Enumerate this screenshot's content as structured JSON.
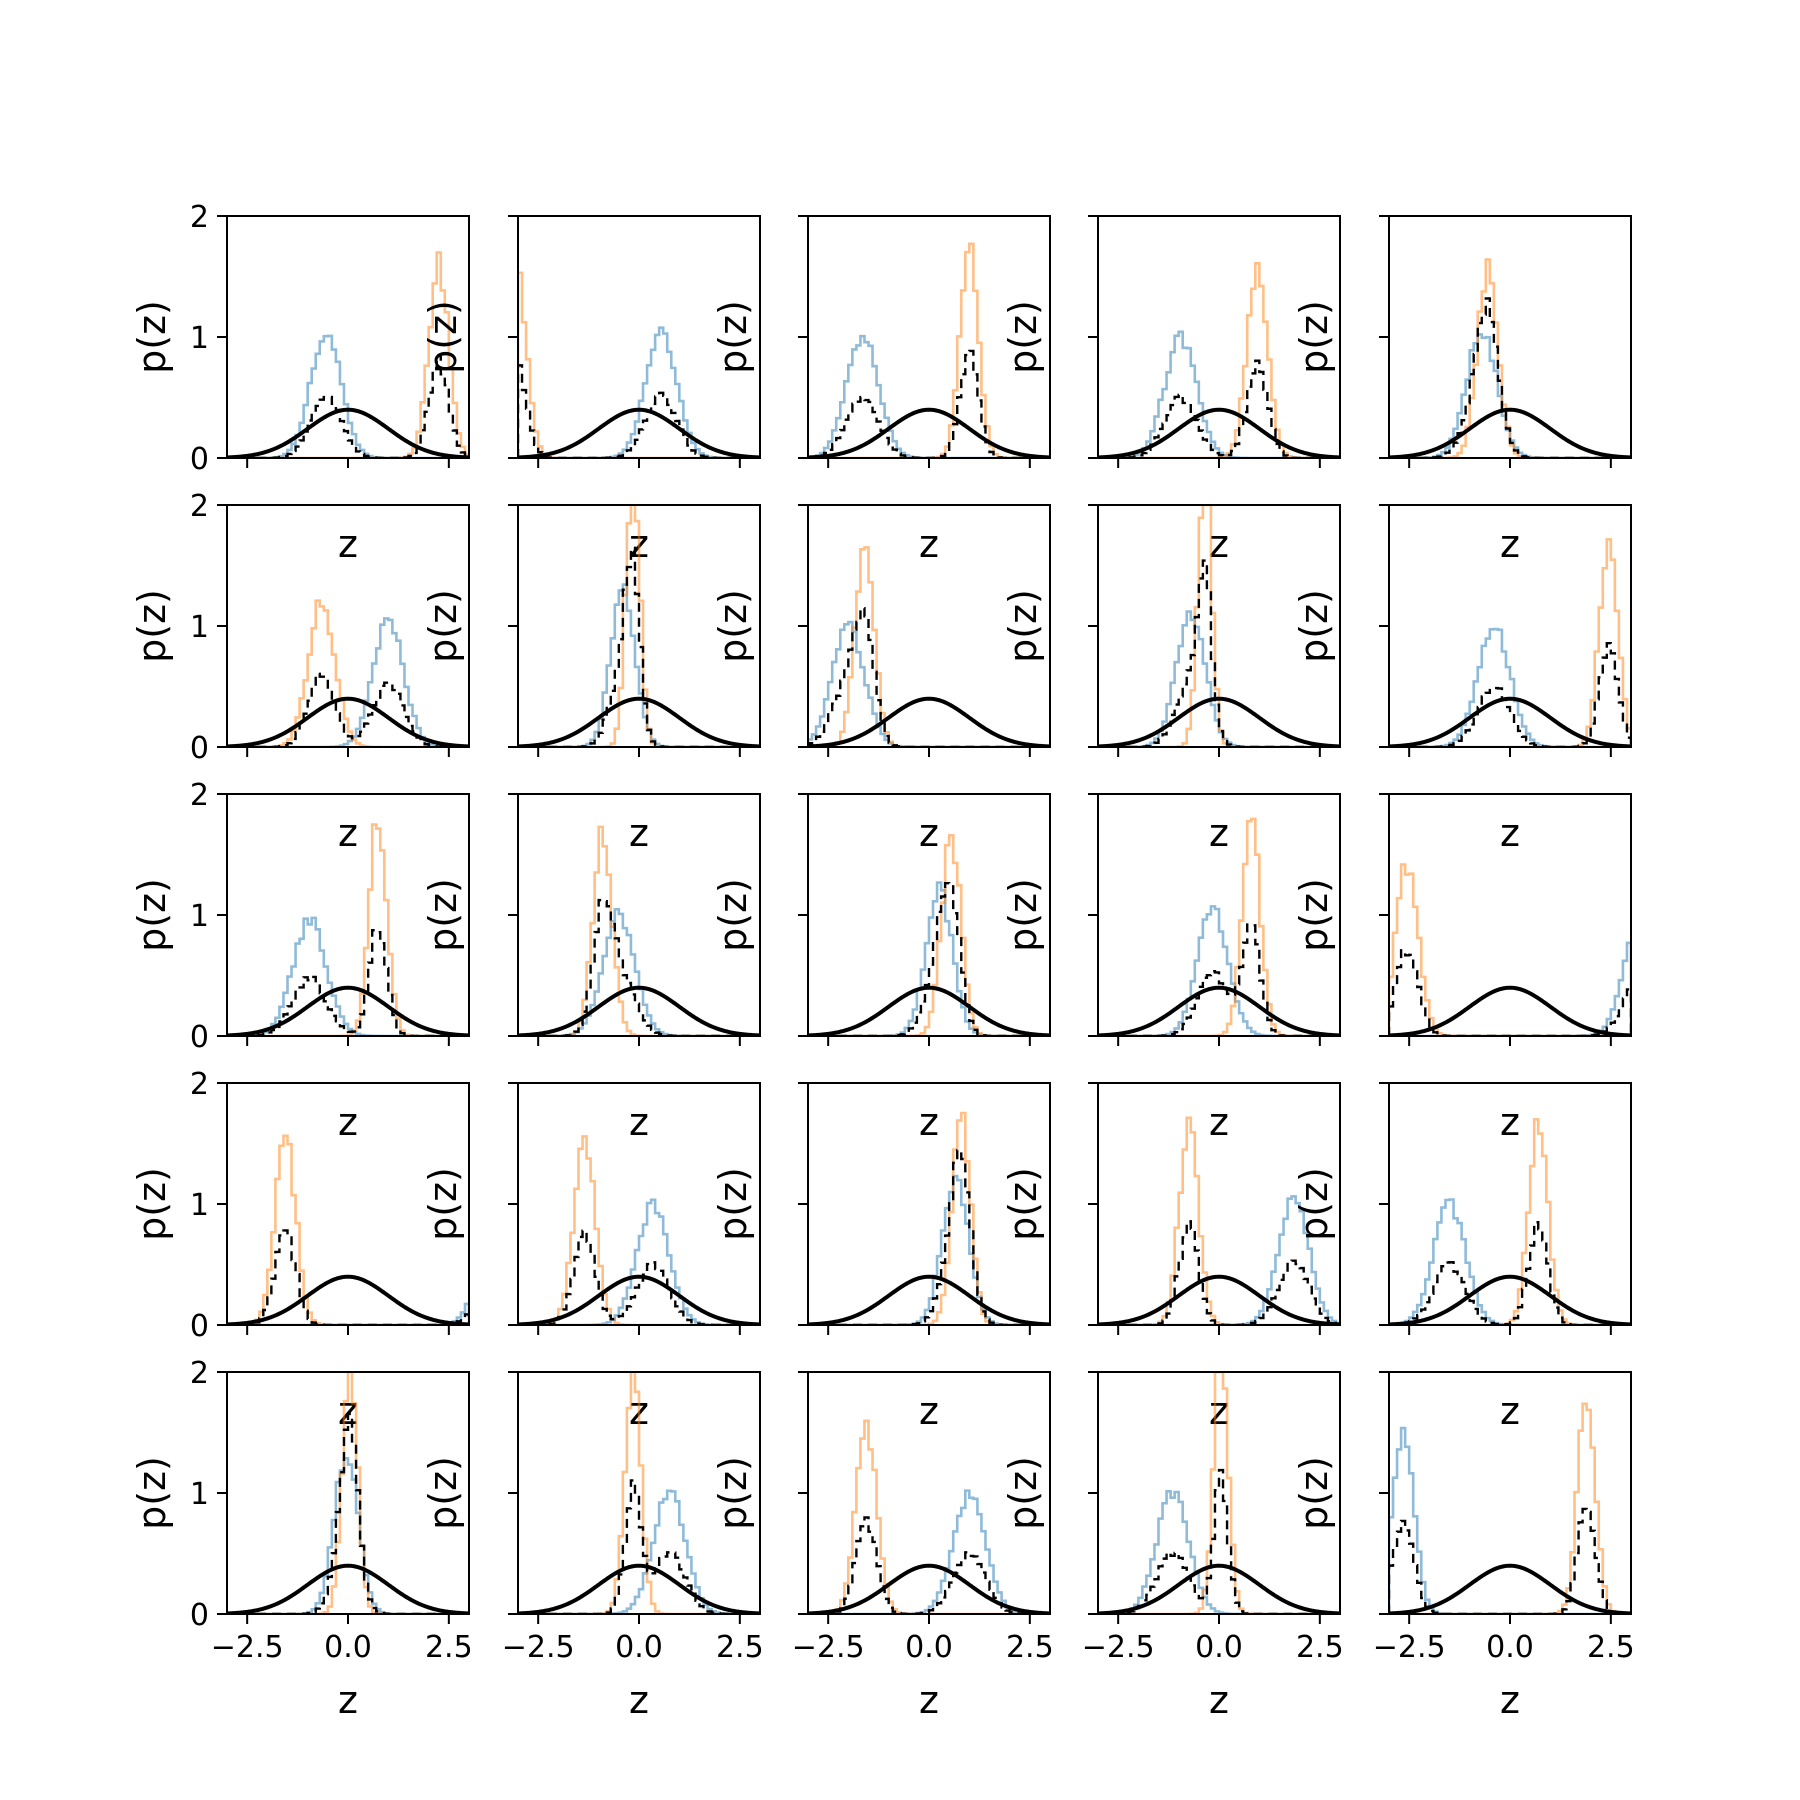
{
  "figure": {
    "rows": 5,
    "cols": 5,
    "colors": {
      "component_a": "#1f77b4",
      "component_b": "#ff7f0e",
      "mixture": "#000000",
      "prior": "#000000"
    },
    "hist_alpha": 0.5
  },
  "chart_data": {
    "type": "histogram-grid",
    "xlabel": "z",
    "ylabel": "p(z)",
    "xlim": [
      -3.0,
      3.0
    ],
    "ylim": [
      0,
      2
    ],
    "xticks": [
      -2.5,
      0.0,
      2.5
    ],
    "xtick_labels": [
      "−2.5",
      "0.0",
      "2.5"
    ],
    "yticks": [
      0,
      1,
      2
    ],
    "ytick_labels": [
      "0",
      "1",
      "2"
    ],
    "prior": {
      "name": "N(0,1)",
      "mean": 0,
      "std": 1
    },
    "panels": [
      {
        "row": 0,
        "col": 0,
        "a": {
          "mu": -0.55,
          "sd": 0.38
        },
        "b": {
          "mu": 2.25,
          "sd": 0.25
        }
      },
      {
        "row": 0,
        "col": 1,
        "a": {
          "mu": 0.55,
          "sd": 0.39
        },
        "b": {
          "mu": -3.05,
          "sd": 0.25
        }
      },
      {
        "row": 0,
        "col": 2,
        "a": {
          "mu": -1.65,
          "sd": 0.4
        },
        "b": {
          "mu": 1.0,
          "sd": 0.23
        }
      },
      {
        "row": 0,
        "col": 3,
        "a": {
          "mu": -0.95,
          "sd": 0.4
        },
        "b": {
          "mu": 0.95,
          "sd": 0.26
        }
      },
      {
        "row": 0,
        "col": 4,
        "a": {
          "mu": -0.7,
          "sd": 0.38
        },
        "b": {
          "mu": -0.55,
          "sd": 0.26
        }
      },
      {
        "row": 1,
        "col": 0,
        "a": {
          "mu": 1.0,
          "sd": 0.38
        },
        "b": {
          "mu": -0.65,
          "sd": 0.33
        }
      },
      {
        "row": 1,
        "col": 1,
        "a": {
          "mu": -0.4,
          "sd": 0.3
        },
        "b": {
          "mu": -0.15,
          "sd": 0.17
        }
      },
      {
        "row": 1,
        "col": 2,
        "a": {
          "mu": -2.0,
          "sd": 0.4
        },
        "b": {
          "mu": -1.6,
          "sd": 0.24
        }
      },
      {
        "row": 1,
        "col": 3,
        "a": {
          "mu": -0.7,
          "sd": 0.36
        },
        "b": {
          "mu": -0.35,
          "sd": 0.17
        }
      },
      {
        "row": 1,
        "col": 4,
        "a": {
          "mu": -0.4,
          "sd": 0.4
        },
        "b": {
          "mu": 2.45,
          "sd": 0.23
        }
      },
      {
        "row": 2,
        "col": 0,
        "a": {
          "mu": -0.95,
          "sd": 0.42
        },
        "b": {
          "mu": 0.75,
          "sd": 0.22
        }
      },
      {
        "row": 2,
        "col": 1,
        "a": {
          "mu": -0.5,
          "sd": 0.4
        },
        "b": {
          "mu": -0.9,
          "sd": 0.24
        }
      },
      {
        "row": 2,
        "col": 2,
        "a": {
          "mu": 0.25,
          "sd": 0.33
        },
        "b": {
          "mu": 0.55,
          "sd": 0.24
        }
      },
      {
        "row": 2,
        "col": 3,
        "a": {
          "mu": -0.15,
          "sd": 0.38
        },
        "b": {
          "mu": 0.8,
          "sd": 0.23
        }
      },
      {
        "row": 2,
        "col": 4,
        "a": {
          "mu": 3.25,
          "sd": 0.4
        },
        "b": {
          "mu": -2.55,
          "sd": 0.28
        }
      },
      {
        "row": 3,
        "col": 0,
        "a": {
          "mu": 3.7,
          "sd": 0.4
        },
        "b": {
          "mu": -1.55,
          "sd": 0.26
        }
      },
      {
        "row": 3,
        "col": 1,
        "a": {
          "mu": 0.35,
          "sd": 0.4
        },
        "b": {
          "mu": -1.35,
          "sd": 0.27
        }
      },
      {
        "row": 3,
        "col": 2,
        "a": {
          "mu": 0.65,
          "sd": 0.33
        },
        "b": {
          "mu": 0.8,
          "sd": 0.23
        }
      },
      {
        "row": 3,
        "col": 3,
        "a": {
          "mu": 1.85,
          "sd": 0.38
        },
        "b": {
          "mu": -0.75,
          "sd": 0.24
        }
      },
      {
        "row": 3,
        "col": 4,
        "a": {
          "mu": -1.5,
          "sd": 0.4
        },
        "b": {
          "mu": 0.7,
          "sd": 0.24
        }
      },
      {
        "row": 4,
        "col": 0,
        "a": {
          "mu": -0.05,
          "sd": 0.3
        },
        "b": {
          "mu": 0.05,
          "sd": 0.19
        }
      },
      {
        "row": 4,
        "col": 1,
        "a": {
          "mu": 0.75,
          "sd": 0.4
        },
        "b": {
          "mu": -0.15,
          "sd": 0.2
        }
      },
      {
        "row": 4,
        "col": 2,
        "a": {
          "mu": 1.0,
          "sd": 0.4
        },
        "b": {
          "mu": -1.55,
          "sd": 0.26
        }
      },
      {
        "row": 4,
        "col": 3,
        "a": {
          "mu": -1.15,
          "sd": 0.4
        },
        "b": {
          "mu": 0.05,
          "sd": 0.18
        }
      },
      {
        "row": 4,
        "col": 4,
        "a": {
          "mu": -2.65,
          "sd": 0.27
        },
        "b": {
          "mu": 1.9,
          "sd": 0.22
        }
      }
    ]
  }
}
